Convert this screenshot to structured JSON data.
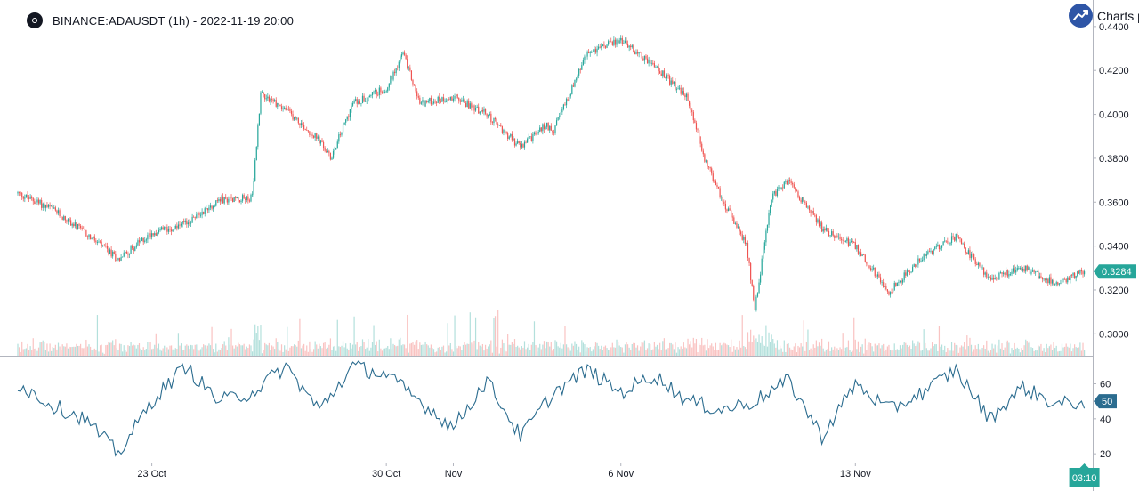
{
  "header": {
    "title": "BINANCE:ADAUSDT (1h) - 2022-11-19 20:00",
    "brand": "Charts p"
  },
  "colors": {
    "up": "#26a69a",
    "down": "#ef5350",
    "oscillator": "#2b6c8f",
    "last_price_badge": "#26a69a",
    "oscillator_badge": "#2b6c8f",
    "time_badge": "#26a69a"
  },
  "chart_data": [
    {
      "type": "candlestick",
      "symbol": "BINANCE:ADAUSDT",
      "interval": "1h",
      "ylim": [
        0.29,
        0.444
      ],
      "y_ticks": [
        "0.4400",
        "0.4200",
        "0.4000",
        "0.3800",
        "0.3600",
        "0.3400",
        "0.3200",
        "0.3000"
      ],
      "x_ticks": [
        "23 Oct",
        "30 Oct",
        "Nov",
        "6 Nov",
        "13 Nov"
      ],
      "last_price": "0.3284",
      "current_time": "03:10",
      "close_path": [
        {
          "x": "2022-10-19",
          "y": 0.364
        },
        {
          "x": "2022-10-20",
          "y": 0.357
        },
        {
          "x": "2022-10-21",
          "y": 0.346
        },
        {
          "x": "2022-10-22",
          "y": 0.334
        },
        {
          "x": "2022-10-23",
          "y": 0.346
        },
        {
          "x": "2022-10-24",
          "y": 0.35
        },
        {
          "x": "2022-10-25",
          "y": 0.361
        },
        {
          "x": "2022-10-26",
          "y": 0.362
        },
        {
          "x": "2022-10-26 06:00",
          "y": 0.41
        },
        {
          "x": "2022-10-27",
          "y": 0.402
        },
        {
          "x": "2022-10-28",
          "y": 0.388
        },
        {
          "x": "2022-10-28 08:00",
          "y": 0.38
        },
        {
          "x": "2022-10-29",
          "y": 0.405
        },
        {
          "x": "2022-10-30",
          "y": 0.412
        },
        {
          "x": "2022-10-30 12:00",
          "y": 0.428
        },
        {
          "x": "2022-10-31",
          "y": 0.405
        },
        {
          "x": "2022-11-01",
          "y": 0.408
        },
        {
          "x": "2022-11-02",
          "y": 0.4
        },
        {
          "x": "2022-11-03",
          "y": 0.385
        },
        {
          "x": "2022-11-03 18:00",
          "y": 0.395
        },
        {
          "x": "2022-11-04",
          "y": 0.393
        },
        {
          "x": "2022-11-05",
          "y": 0.428
        },
        {
          "x": "2022-11-06",
          "y": 0.434
        },
        {
          "x": "2022-11-07",
          "y": 0.422
        },
        {
          "x": "2022-11-08",
          "y": 0.407
        },
        {
          "x": "2022-11-08 12:00",
          "y": 0.38
        },
        {
          "x": "2022-11-09",
          "y": 0.362
        },
        {
          "x": "2022-11-09 18:00",
          "y": 0.34
        },
        {
          "x": "2022-11-10",
          "y": 0.312
        },
        {
          "x": "2022-11-10 12:00",
          "y": 0.362
        },
        {
          "x": "2022-11-11",
          "y": 0.37
        },
        {
          "x": "2022-11-12",
          "y": 0.348
        },
        {
          "x": "2022-11-13",
          "y": 0.34
        },
        {
          "x": "2022-11-14",
          "y": 0.319
        },
        {
          "x": "2022-11-15",
          "y": 0.335
        },
        {
          "x": "2022-11-16",
          "y": 0.344
        },
        {
          "x": "2022-11-17",
          "y": 0.325
        },
        {
          "x": "2022-11-18",
          "y": 0.33
        },
        {
          "x": "2022-11-19",
          "y": 0.323
        },
        {
          "x": "2022-11-19 20:00",
          "y": 0.3284
        }
      ]
    },
    {
      "type": "line",
      "ylim": [
        15,
        75
      ],
      "y_ticks": [
        "60",
        "40",
        "20"
      ],
      "last_value": "50",
      "path": [
        {
          "x": "2022-10-19",
          "y": 60
        },
        {
          "x": "2022-10-20",
          "y": 48
        },
        {
          "x": "2022-10-21",
          "y": 40
        },
        {
          "x": "2022-10-22",
          "y": 20
        },
        {
          "x": "2022-10-23",
          "y": 50
        },
        {
          "x": "2022-10-24",
          "y": 70
        },
        {
          "x": "2022-10-25",
          "y": 50
        },
        {
          "x": "2022-10-26",
          "y": 55
        },
        {
          "x": "2022-10-27",
          "y": 70
        },
        {
          "x": "2022-10-28",
          "y": 45
        },
        {
          "x": "2022-10-29",
          "y": 70
        },
        {
          "x": "2022-10-30",
          "y": 65
        },
        {
          "x": "2022-10-31",
          "y": 50
        },
        {
          "x": "2022-11-01",
          "y": 35
        },
        {
          "x": "2022-11-02",
          "y": 62
        },
        {
          "x": "2022-11-03",
          "y": 30
        },
        {
          "x": "2022-11-04",
          "y": 55
        },
        {
          "x": "2022-11-05",
          "y": 68
        },
        {
          "x": "2022-11-06",
          "y": 55
        },
        {
          "x": "2022-11-07",
          "y": 65
        },
        {
          "x": "2022-11-08",
          "y": 50
        },
        {
          "x": "2022-11-09",
          "y": 45
        },
        {
          "x": "2022-11-10",
          "y": 50
        },
        {
          "x": "2022-11-11",
          "y": 62
        },
        {
          "x": "2022-11-12",
          "y": 30
        },
        {
          "x": "2022-11-13",
          "y": 60
        },
        {
          "x": "2022-11-14",
          "y": 45
        },
        {
          "x": "2022-11-15",
          "y": 55
        },
        {
          "x": "2022-11-16",
          "y": 68
        },
        {
          "x": "2022-11-17",
          "y": 40
        },
        {
          "x": "2022-11-18",
          "y": 58
        },
        {
          "x": "2022-11-19",
          "y": 48
        },
        {
          "x": "2022-11-19 20:00",
          "y": 50
        }
      ]
    }
  ]
}
